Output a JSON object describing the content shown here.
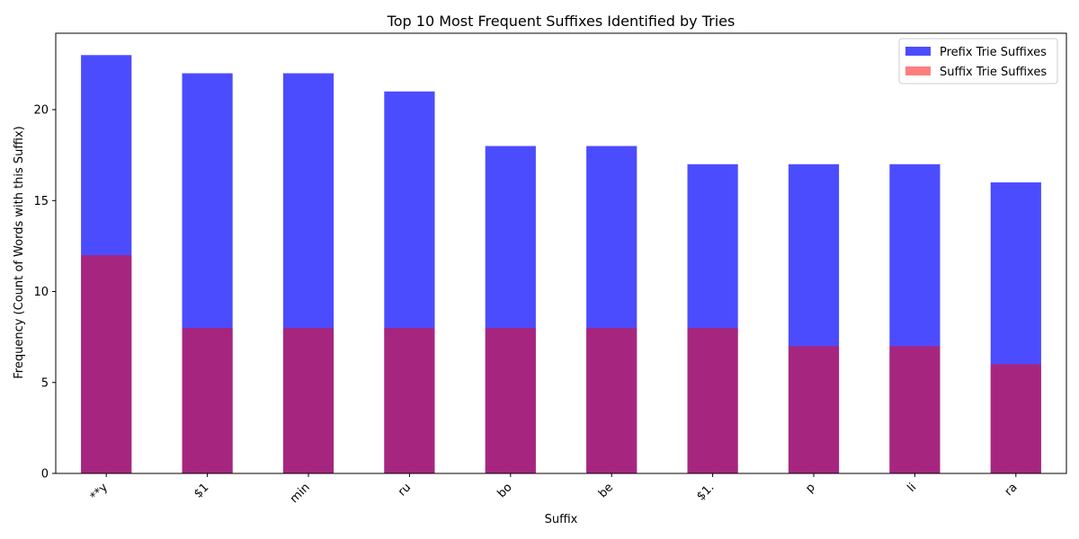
{
  "chart_data": {
    "type": "bar",
    "title": "Top 10 Most Frequent Suffixes Identified by Tries",
    "xlabel": "Suffix",
    "ylabel": "Frequency (Count of Words with this Suffix)",
    "categories": [
      "**y",
      "$1",
      "min",
      "ru",
      "bo",
      "be",
      "$1.",
      "p",
      "li",
      "ra"
    ],
    "ylim": [
      0,
      24.2
    ],
    "yticks": [
      0,
      5,
      10,
      15,
      20
    ],
    "grid": false,
    "legend_position": "top-right",
    "overlay": true,
    "series": [
      {
        "name": "Prefix Trie Suffixes",
        "color": "#0000ff",
        "opacity": 0.7,
        "values": [
          23,
          22,
          22,
          21,
          18,
          18,
          17,
          17,
          17,
          16
        ]
      },
      {
        "name": "Suffix Trie Suffixes",
        "color": "#ff0000",
        "opacity": 0.5,
        "values": [
          12,
          8,
          8,
          8,
          8,
          8,
          8,
          7,
          7,
          6
        ]
      }
    ]
  }
}
